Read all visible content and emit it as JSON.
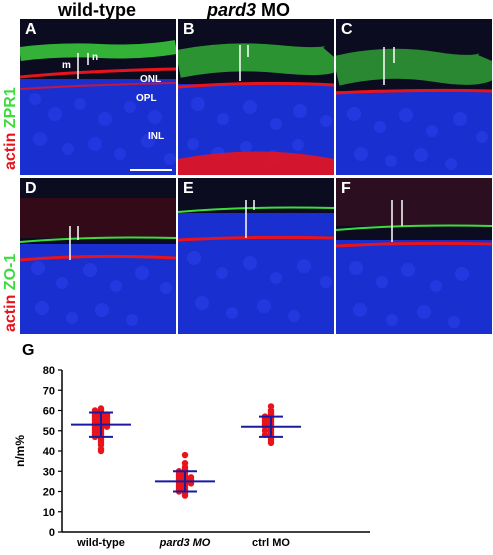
{
  "figure": {
    "columns": [
      {
        "id": "wt",
        "title": "wild-type",
        "italic_part": "",
        "suffix": ""
      },
      {
        "id": "pard3",
        "title": "",
        "italic_part": "pard3",
        "suffix": " MO"
      }
    ],
    "rows": [
      {
        "id": "row1",
        "stain_red": "actin",
        "stain_green": "ZPR1"
      },
      {
        "id": "row2",
        "stain_red": "actin",
        "stain_green": "ZO-1"
      }
    ],
    "panels": [
      {
        "id": "A",
        "label": "A"
      },
      {
        "id": "B",
        "label": "B"
      },
      {
        "id": "C",
        "label": "C"
      },
      {
        "id": "D",
        "label": "D"
      },
      {
        "id": "E",
        "label": "E"
      },
      {
        "id": "F",
        "label": "F"
      }
    ],
    "layer_labels": {
      "onl": "ONL",
      "opl": "OPL",
      "inl": "INL",
      "n": "n",
      "m": "m"
    },
    "panel_g_label": "G",
    "colors": {
      "actin": "#e8141c",
      "zpr1": "#3ddc3d",
      "dapi": "#1a2fd0",
      "points": "#e8141c",
      "bars": "#1a1aa0"
    }
  },
  "chart_data": {
    "type": "scatter",
    "title": "",
    "xlabel": "",
    "ylabel": "n/m%",
    "ylim": [
      0,
      80
    ],
    "yticks": [
      0,
      10,
      20,
      30,
      40,
      50,
      60,
      70,
      80
    ],
    "categories": [
      "wild-type",
      "pard3 MO",
      "ctrl MO"
    ],
    "category_italic": [
      false,
      true,
      false
    ],
    "summary": [
      {
        "category": "wild-type",
        "mean": 53,
        "sd_low": 47,
        "sd_high": 59
      },
      {
        "category": "pard3 MO",
        "mean": 25,
        "sd_low": 20,
        "sd_high": 30
      },
      {
        "category": "ctrl MO",
        "mean": 52,
        "sd_low": 47,
        "sd_high": 57
      }
    ],
    "series": [
      {
        "category": "wild-type",
        "values": [
          61,
          60,
          60,
          59,
          59,
          58,
          58,
          58,
          57,
          57,
          57,
          56,
          56,
          56,
          55,
          55,
          55,
          54,
          54,
          54,
          53,
          53,
          53,
          52,
          52,
          52,
          51,
          51,
          50,
          50,
          49,
          49,
          48,
          48,
          47,
          47,
          46,
          45,
          44,
          43,
          41,
          40
        ]
      },
      {
        "category": "pard3 MO",
        "values": [
          38,
          34,
          32,
          31,
          30,
          30,
          29,
          29,
          28,
          28,
          27,
          27,
          27,
          26,
          26,
          26,
          25,
          25,
          25,
          24,
          24,
          24,
          23,
          23,
          22,
          22,
          21,
          21,
          20,
          20,
          19,
          18
        ]
      },
      {
        "category": "ctrl MO",
        "values": [
          62,
          60,
          59,
          58,
          57,
          57,
          56,
          56,
          55,
          55,
          54,
          54,
          53,
          53,
          52,
          52,
          51,
          50,
          50,
          49,
          48,
          48,
          47,
          46,
          45,
          44
        ]
      }
    ]
  }
}
